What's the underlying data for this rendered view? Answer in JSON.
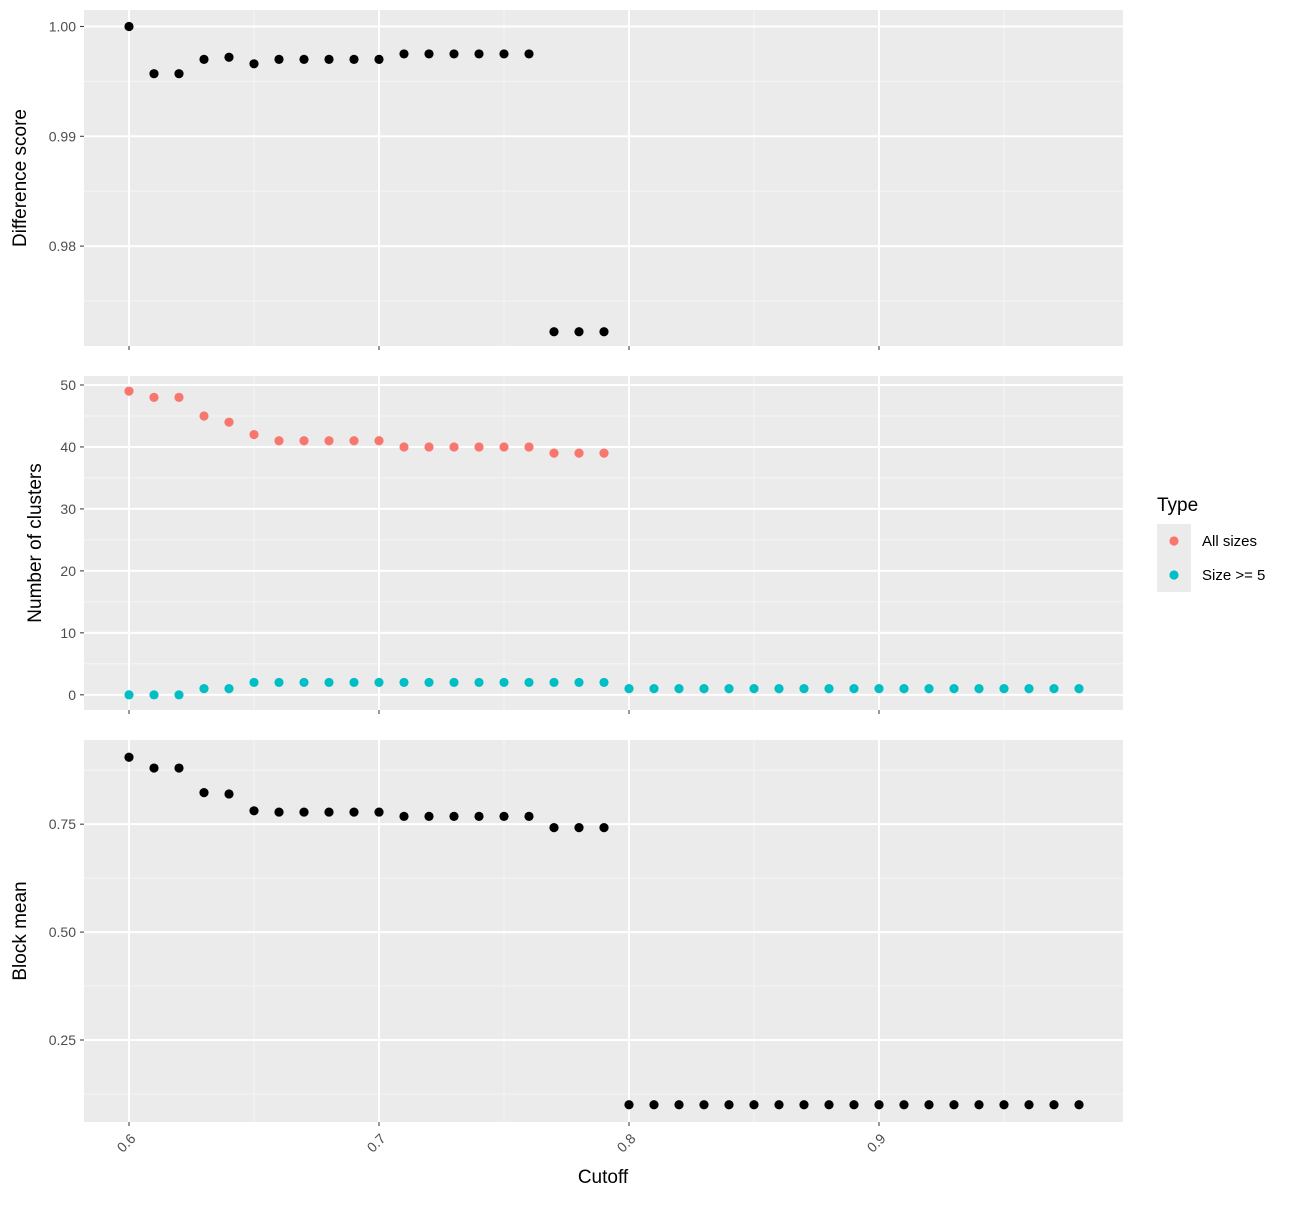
{
  "colors": {
    "panel_bg": "#EBEBEB",
    "grid_major": "#FFFFFF",
    "grid_minor": "#F5F5F5",
    "tick": "#333333",
    "text": "#4D4D4D",
    "point_default": "#000000",
    "all_sizes": "#F8766D",
    "size_ge_5": "#00BFC4"
  },
  "chart_data": {
    "type": "scatter",
    "shared_x": {
      "label": "Cutoff",
      "lim": [
        0.6,
        0.98
      ],
      "ticks": [
        0.6,
        0.7,
        0.8,
        0.9
      ],
      "tick_labels": [
        "0.6",
        "0.7",
        "0.8",
        "0.9"
      ],
      "minor_breaks": [
        0.65,
        0.75,
        0.85,
        0.95
      ],
      "tick_label_rotation": "45"
    },
    "legend": {
      "title": "Type",
      "position": "right",
      "entries": [
        {
          "label": "All sizes",
          "color": "#F8766D"
        },
        {
          "label": "Size >= 5",
          "color": "#00BFC4"
        }
      ]
    },
    "panels": [
      {
        "ylabel": "Difference score",
        "ylim": [
          0.9709,
          1.0015
        ],
        "yticks": [
          0.98,
          0.99,
          1.0
        ],
        "ytick_labels": [
          "0.98",
          "0.99",
          "1.00"
        ],
        "series": [
          {
            "color": "#000000",
            "x": [
              0.6,
              0.61,
              0.62,
              0.63,
              0.64,
              0.65,
              0.66,
              0.67,
              0.68,
              0.69,
              0.7,
              0.71,
              0.72,
              0.73,
              0.74,
              0.75,
              0.76,
              0.77,
              0.78,
              0.79
            ],
            "y": [
              1.0,
              0.9957,
              0.9957,
              0.997,
              0.9972,
              0.9966,
              0.997,
              0.997,
              0.997,
              0.997,
              0.997,
              0.9975,
              0.9975,
              0.9975,
              0.9975,
              0.9975,
              0.9975,
              0.9722,
              0.9722,
              0.9722
            ]
          }
        ]
      },
      {
        "ylabel": "Number of clusters",
        "ylim": [
          -2.45,
          51.45
        ],
        "yticks": [
          0,
          10,
          20,
          30,
          40,
          50
        ],
        "ytick_labels": [
          "0",
          "10",
          "20",
          "30",
          "40",
          "50"
        ],
        "series": [
          {
            "name": "All sizes",
            "color": "#F8766D",
            "x": [
              0.6,
              0.61,
              0.62,
              0.63,
              0.64,
              0.65,
              0.66,
              0.67,
              0.68,
              0.69,
              0.7,
              0.71,
              0.72,
              0.73,
              0.74,
              0.75,
              0.76,
              0.77,
              0.78,
              0.79
            ],
            "y": [
              49,
              48,
              48,
              45,
              44,
              42,
              41,
              41,
              41,
              41,
              41,
              40,
              40,
              40,
              40,
              40,
              40,
              39,
              39,
              39
            ]
          },
          {
            "name": "Size >= 5",
            "color": "#00BFC4",
            "x": [
              0.6,
              0.61,
              0.62,
              0.63,
              0.64,
              0.65,
              0.66,
              0.67,
              0.68,
              0.69,
              0.7,
              0.71,
              0.72,
              0.73,
              0.74,
              0.75,
              0.76,
              0.77,
              0.78,
              0.79,
              0.8,
              0.81,
              0.82,
              0.83,
              0.84,
              0.85,
              0.86,
              0.87,
              0.88,
              0.89,
              0.9,
              0.91,
              0.92,
              0.93,
              0.94,
              0.95,
              0.96,
              0.97,
              0.98
            ],
            "y": [
              0,
              0,
              0,
              1,
              1,
              2,
              2,
              2,
              2,
              2,
              2,
              2,
              2,
              2,
              2,
              2,
              2,
              2,
              2,
              2,
              1,
              1,
              1,
              1,
              1,
              1,
              1,
              1,
              1,
              1,
              1,
              1,
              1,
              1,
              1,
              1,
              1,
              1,
              1
            ]
          }
        ]
      },
      {
        "ylabel": "Block mean",
        "ylim": [
          0.06,
          0.945
        ],
        "yticks": [
          0.25,
          0.5,
          0.75
        ],
        "ytick_labels": [
          "0.25",
          "0.50",
          "0.75"
        ],
        "series": [
          {
            "color": "#000000",
            "x": [
              0.6,
              0.61,
              0.62,
              0.63,
              0.64,
              0.65,
              0.66,
              0.67,
              0.68,
              0.69,
              0.7,
              0.71,
              0.72,
              0.73,
              0.74,
              0.75,
              0.76,
              0.77,
              0.78,
              0.79,
              0.8,
              0.81,
              0.82,
              0.83,
              0.84,
              0.85,
              0.86,
              0.87,
              0.88,
              0.89,
              0.9,
              0.91,
              0.92,
              0.93,
              0.94,
              0.95,
              0.96,
              0.97,
              0.98
            ],
            "y": [
              0.905,
              0.88,
              0.88,
              0.823,
              0.82,
              0.781,
              0.778,
              0.778,
              0.778,
              0.778,
              0.778,
              0.768,
              0.768,
              0.768,
              0.768,
              0.768,
              0.768,
              0.742,
              0.742,
              0.742,
              0.1,
              0.1,
              0.1,
              0.1,
              0.1,
              0.1,
              0.1,
              0.1,
              0.1,
              0.1,
              0.1,
              0.1,
              0.1,
              0.1,
              0.1,
              0.1,
              0.1,
              0.1,
              0.1
            ]
          }
        ]
      }
    ]
  }
}
